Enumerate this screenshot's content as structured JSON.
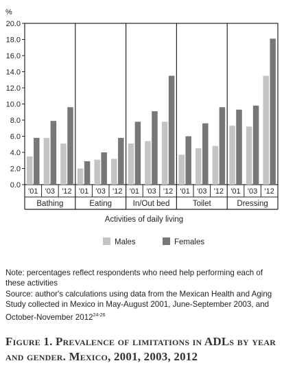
{
  "chart_data": {
    "type": "bar",
    "unit_label": "%",
    "ylim": [
      0,
      20
    ],
    "y_ticks": [
      "0.0",
      "2.0",
      "4.0",
      "6.0",
      "8.0",
      "10.0",
      "12.0",
      "14.0",
      "16.0",
      "18.0",
      "20.0"
    ],
    "xlabel": "Activities of daily living",
    "groups": [
      "Bathing",
      "Eating",
      "In/Out bed",
      "Toilet",
      "Dressing"
    ],
    "years": [
      "'01",
      "'03",
      "'12"
    ],
    "series": [
      {
        "name": "Males",
        "color": "#c4c4c4",
        "values": [
          [
            3.5,
            5.8,
            5.1
          ],
          [
            2.0,
            3.1,
            3.2
          ],
          [
            5.1,
            5.4,
            7.8
          ],
          [
            3.7,
            4.5,
            4.8
          ],
          [
            7.3,
            7.2,
            13.5
          ]
        ]
      },
      {
        "name": "Females",
        "color": "#777777",
        "values": [
          [
            5.8,
            7.9,
            9.6
          ],
          [
            2.9,
            4.0,
            5.8
          ],
          [
            7.8,
            9.1,
            13.5
          ],
          [
            6.0,
            7.6,
            9.6
          ],
          [
            9.3,
            9.8,
            18.1
          ]
        ]
      }
    ],
    "legend_position": "bottom-center"
  },
  "notes": {
    "note": "Note: percentages reflect respondents who need help performing each of these activities",
    "source": "Source: author's calculations using data from the Mexican Health and Aging Study collected in Mexico in May-August 2001, June-September 2003, and October-November 2012",
    "source_ref": "24-26"
  },
  "caption": "Figure 1. Prevalence of limitations in ADLs by year and gender. Mexico, 2001, 2003, 2012"
}
